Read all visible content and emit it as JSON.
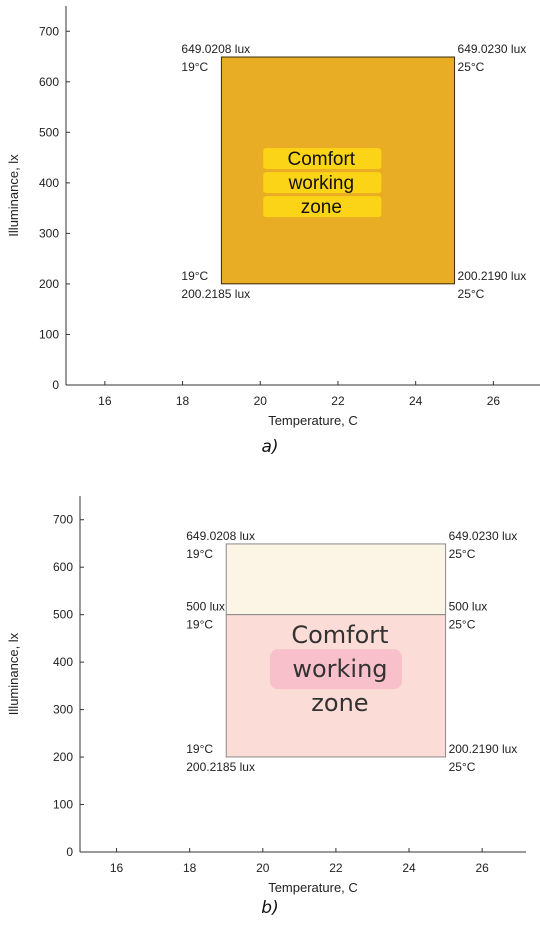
{
  "panel_labels": [
    "a)",
    "b)"
  ],
  "chart_data": [
    {
      "type": "area",
      "title": "",
      "xlabel": "Temperature, C",
      "ylabel": "Illuminance, lx",
      "xlim": [
        15,
        27.2
      ],
      "ylim": [
        0,
        750
      ],
      "xticks": [
        16,
        18,
        20,
        22,
        24,
        26
      ],
      "yticks": [
        0,
        100,
        200,
        300,
        400,
        500,
        600,
        700
      ],
      "grid": false,
      "regions": [
        {
          "x": [
            19,
            25
          ],
          "y": [
            200.2185,
            649.0208
          ],
          "fill": "#e8ad24",
          "stroke": "#3a2a05"
        }
      ],
      "zone_label": [
        "Comfort",
        "working",
        "zone"
      ],
      "zone_highlight": "#fcd417",
      "annotations": [
        {
          "x": 19,
          "y": 649.0208,
          "lines": [
            "649.0208 lux",
            "19°C"
          ],
          "anchor": "top-left"
        },
        {
          "x": 25,
          "y": 649.023,
          "lines": [
            "649.0230 lux",
            "25°C"
          ],
          "anchor": "top-right"
        },
        {
          "x": 19,
          "y": 200.2185,
          "lines": [
            "19°C",
            "200.2185 lux"
          ],
          "anchor": "bottom-left"
        },
        {
          "x": 25,
          "y": 200.219,
          "lines": [
            "200.2190 lux",
            "25°C"
          ],
          "anchor": "bottom-right"
        }
      ]
    },
    {
      "type": "area",
      "title": "",
      "xlabel": "Temperature, C",
      "ylabel": "Illuminance, lx",
      "xlim": [
        15,
        27.2
      ],
      "ylim": [
        0,
        750
      ],
      "xticks": [
        16,
        18,
        20,
        22,
        24,
        26
      ],
      "yticks": [
        0,
        100,
        200,
        300,
        400,
        500,
        600,
        700
      ],
      "grid": false,
      "regions": [
        {
          "x": [
            19,
            25
          ],
          "y": [
            500,
            649.0208
          ],
          "fill": "#fcf5e6",
          "stroke": "#8a8a8a"
        },
        {
          "x": [
            19,
            25
          ],
          "y": [
            200.2185,
            500
          ],
          "fill": "#fcdcd6",
          "stroke": "#8a8a8a"
        }
      ],
      "zone_label": [
        "Comfort",
        "working",
        "zone"
      ],
      "zone_highlight": "#f6b7c6",
      "annotations": [
        {
          "x": 19,
          "y": 649.0208,
          "lines": [
            "649.0208 lux",
            "19°C"
          ],
          "anchor": "top-left"
        },
        {
          "x": 25,
          "y": 649.023,
          "lines": [
            "649.0230 lux",
            "25°C"
          ],
          "anchor": "top-right"
        },
        {
          "x": 19,
          "y": 500,
          "lines": [
            "500 lux",
            "19°C"
          ],
          "anchor": "top-left"
        },
        {
          "x": 25,
          "y": 500,
          "lines": [
            "500 lux",
            "25°C"
          ],
          "anchor": "top-right"
        },
        {
          "x": 19,
          "y": 200.2185,
          "lines": [
            "19°C",
            "200.2185 lux"
          ],
          "anchor": "bottom-left"
        },
        {
          "x": 25,
          "y": 200.219,
          "lines": [
            "200.2190 lux",
            "25°C"
          ],
          "anchor": "bottom-right"
        }
      ]
    }
  ]
}
